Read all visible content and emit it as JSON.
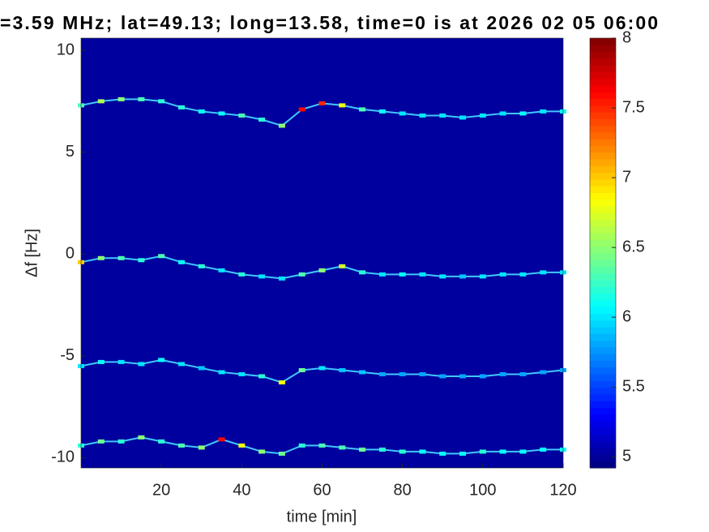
{
  "chart_data": {
    "type": "spectrogram",
    "title": "=3.59 MHz;  lat=49.13; long=13.58, time=0 is at 2026 02 05 06:00",
    "x_label": "time [min]",
    "y_label": "Δf [Hz]",
    "xlim": [
      0,
      120
    ],
    "xticks": [
      20,
      40,
      60,
      80,
      100,
      120
    ],
    "ylim": [
      -10.5,
      10.6
    ],
    "yticks": [
      -10,
      -5,
      0,
      5,
      10
    ],
    "clim": [
      4.92,
      8
    ],
    "cticks": [
      5,
      5.5,
      6,
      6.5,
      7,
      7.5,
      8
    ],
    "colormap": "jet",
    "x": [
      0,
      5,
      10,
      15,
      20,
      25,
      30,
      35,
      40,
      45,
      50,
      55,
      60,
      65,
      70,
      75,
      80,
      85,
      90,
      95,
      100,
      105,
      110,
      115,
      120
    ],
    "traces": [
      {
        "y": [
          7.3,
          7.5,
          7.6,
          7.6,
          7.5,
          7.2,
          7.0,
          6.9,
          6.8,
          6.6,
          6.3,
          7.1,
          7.4,
          7.3,
          7.1,
          7.0,
          6.9,
          6.8,
          6.8,
          6.7,
          6.8,
          6.9,
          6.9,
          7.0,
          7.0
        ],
        "z": [
          6.3,
          6.6,
          6.5,
          6.3,
          6.2,
          6.2,
          6.1,
          6.1,
          6.3,
          6.2,
          6.5,
          7.6,
          7.5,
          6.8,
          6.3,
          6.1,
          6.0,
          6.0,
          6.0,
          6.0,
          6.0,
          6.0,
          6.1,
          6.0,
          6.1
        ]
      },
      {
        "y": [
          -0.4,
          -0.2,
          -0.2,
          -0.3,
          -0.1,
          -0.4,
          -0.6,
          -0.8,
          -1.0,
          -1.1,
          -1.2,
          -1.0,
          -0.8,
          -0.6,
          -0.9,
          -1.0,
          -1.0,
          -1.0,
          -1.1,
          -1.1,
          -1.1,
          -1.0,
          -1.0,
          -0.9,
          -0.9
        ],
        "z": [
          7.0,
          6.5,
          6.3,
          6.2,
          6.3,
          6.1,
          6.2,
          6.0,
          6.2,
          6.0,
          6.0,
          6.3,
          6.5,
          6.7,
          6.2,
          6.0,
          6.1,
          6.0,
          6.0,
          5.9,
          6.0,
          6.0,
          6.0,
          6.0,
          6.0
        ]
      },
      {
        "y": [
          -5.5,
          -5.3,
          -5.3,
          -5.4,
          -5.2,
          -5.4,
          -5.6,
          -5.8,
          -5.9,
          -6.0,
          -6.3,
          -5.7,
          -5.6,
          -5.7,
          -5.8,
          -5.9,
          -5.9,
          -5.9,
          -6.0,
          -6.0,
          -6.0,
          -5.9,
          -5.9,
          -5.8,
          -5.7
        ],
        "z": [
          6.0,
          6.1,
          6.0,
          6.0,
          6.1,
          6.0,
          5.9,
          6.0,
          6.0,
          6.2,
          6.8,
          6.4,
          6.0,
          5.9,
          5.9,
          5.8,
          5.8,
          5.8,
          5.8,
          5.8,
          5.8,
          5.8,
          5.8,
          5.8,
          5.8
        ]
      },
      {
        "y": [
          -9.4,
          -9.2,
          -9.2,
          -9.0,
          -9.2,
          -9.4,
          -9.5,
          -9.1,
          -9.4,
          -9.7,
          -9.8,
          -9.4,
          -9.4,
          -9.5,
          -9.6,
          -9.6,
          -9.7,
          -9.7,
          -9.8,
          -9.8,
          -9.7,
          -9.7,
          -9.7,
          -9.6,
          -9.6
        ],
        "z": [
          6.2,
          6.4,
          6.2,
          6.5,
          6.2,
          6.3,
          6.5,
          7.6,
          6.8,
          6.5,
          6.4,
          6.2,
          6.3,
          6.3,
          6.4,
          6.2,
          6.2,
          6.1,
          6.1,
          6.1,
          6.2,
          6.1,
          6.1,
          6.1,
          6.1
        ]
      }
    ]
  }
}
